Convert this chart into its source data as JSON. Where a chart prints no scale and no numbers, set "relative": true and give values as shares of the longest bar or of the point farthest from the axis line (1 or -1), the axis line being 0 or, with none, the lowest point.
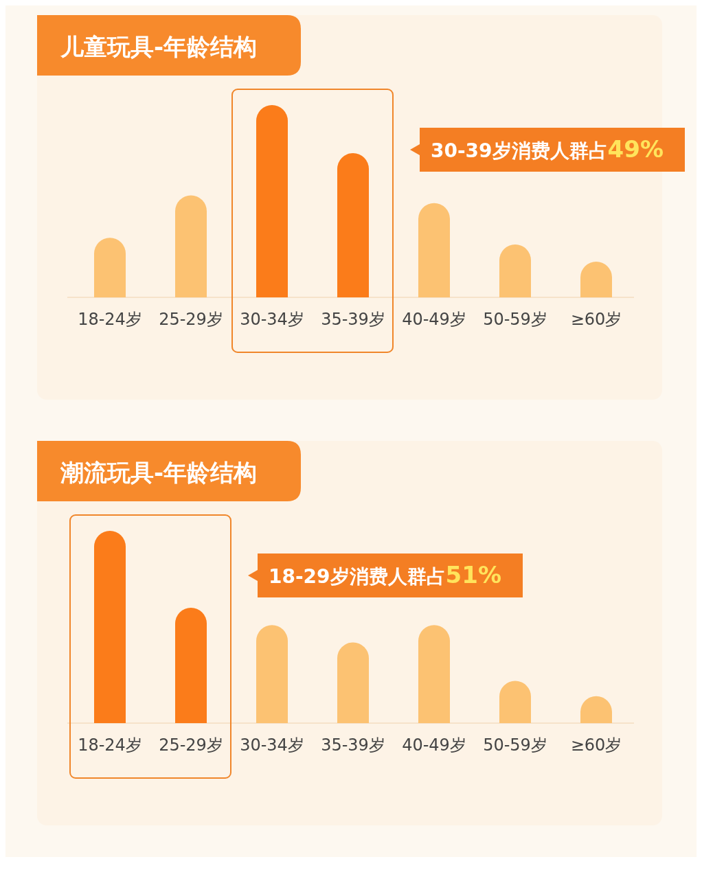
{
  "chart_data": [
    {
      "type": "bar",
      "title": "儿童玩具-年龄结构",
      "categories": [
        "18-24岁",
        "25-29岁",
        "30-34岁",
        "35-39岁",
        "40-49岁",
        "50-59岁",
        "≥60岁"
      ],
      "values": [
        0.31,
        0.53,
        1,
        0.75,
        0.49,
        0.275,
        0.186
      ],
      "colors": [
        "#fcc272",
        "#fcc272",
        "#fb7c1a",
        "#fb7c1a",
        "#fcc272",
        "#fcc272",
        "#fcc272"
      ],
      "relative": true,
      "annotations": [
        "30-39岁消费人群占49%"
      ]
    },
    {
      "type": "bar",
      "title": "潮流玩具-年龄结构",
      "categories": [
        "18-24岁",
        "25-29岁",
        "30-34岁",
        "35-39岁",
        "40-49岁",
        "50-59岁",
        "≥60岁"
      ],
      "values": [
        1,
        0.6,
        0.51,
        0.42,
        0.51,
        0.22,
        0.14
      ],
      "colors": [
        "#fb7c1a",
        "#fb7c1a",
        "#fcc272",
        "#fcc272",
        "#fcc272",
        "#fcc272",
        "#fcc272"
      ],
      "relative": true,
      "annotations": [
        "18-29岁消费人群占51%"
      ]
    }
  ]
}
